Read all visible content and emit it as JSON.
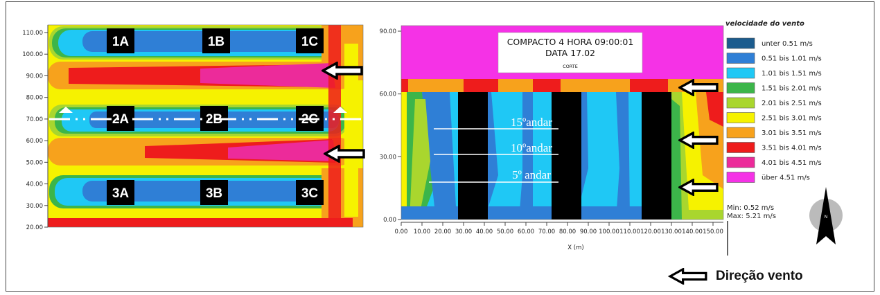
{
  "plan_map": {
    "y_ticks": [
      "110.00",
      "100.00",
      "90.00",
      "80.00",
      "70.00",
      "60.00",
      "50.00",
      "40.00",
      "30.00",
      "20.00"
    ],
    "buildings": [
      "1A",
      "1B",
      "1C",
      "2A",
      "2B",
      "2C",
      "3A",
      "3B",
      "3C"
    ]
  },
  "section_map": {
    "title_line1": "COMPACTO 4   HORA 09:00:01",
    "title_line2": "DATA 17.02",
    "title_line3": "CORTE",
    "y_ticks": [
      "90.00",
      "60.00",
      "30.00",
      "0.00"
    ],
    "x_ticks": [
      "0.00",
      "10.00",
      "20.00",
      "30.00",
      "40.00",
      "50.00",
      "60.00",
      "70.00",
      "80.00",
      "90.00",
      "100.00",
      "110.00",
      "120.00",
      "130.00",
      "140.00",
      "150.00"
    ],
    "xlabel": "X (m)",
    "floors": [
      "15ºandar",
      "10ºandar",
      "5º andar"
    ]
  },
  "legend": {
    "title": "velocidade do vento",
    "items": [
      {
        "label": "unter 0.51 m/s",
        "color": "#1c5c8e"
      },
      {
        "label": "0.51 bis 1.01 m/s",
        "color": "#2f7fd6"
      },
      {
        "label": "1.01 bis 1.51 m/s",
        "color": "#1fc8f5"
      },
      {
        "label": "1.51 bis 2.01 m/s",
        "color": "#3cb54a"
      },
      {
        "label": "2.01 bis 2.51 m/s",
        "color": "#a9d62e"
      },
      {
        "label": "2.51 bis 3.01 m/s",
        "color": "#f6f200"
      },
      {
        "label": "3.01 bis 3.51 m/s",
        "color": "#f7a21c"
      },
      {
        "label": "3.51 bis 4.01 m/s",
        "color": "#ee1c1c"
      },
      {
        "label": "4.01 bis 4.51 m/s",
        "color": "#ec2b9a"
      },
      {
        "label": "über 4.51 m/s",
        "color": "#f532e6"
      }
    ],
    "min": "Min: 0.52 m/s",
    "max": "Max: 5.21 m/s",
    "north": "N"
  },
  "wind_direction": "Direção vento",
  "chart_data": [
    {
      "type": "heatmap",
      "view": "plan",
      "ylim": [
        20,
        110
      ],
      "y_ticks": [
        110,
        100,
        90,
        80,
        70,
        60,
        50,
        40,
        30,
        20
      ],
      "buildings": [
        "1A",
        "1B",
        "1C",
        "2A",
        "2B",
        "2C",
        "3A",
        "3B",
        "3C"
      ],
      "section_cut_y": 70
    },
    {
      "type": "heatmap",
      "view": "section",
      "title": "COMPACTO 4   HORA 09:00:01 DATA 17.02 CORTE",
      "xlabel": "X (m)",
      "xlim": [
        0,
        155
      ],
      "ylim": [
        0,
        90
      ],
      "x_ticks": [
        0,
        10,
        20,
        30,
        40,
        50,
        60,
        70,
        80,
        90,
        100,
        110,
        120,
        130,
        140,
        150
      ],
      "y_ticks": [
        0,
        30,
        60,
        90
      ],
      "building_height": 60,
      "buildings_x": [
        [
          27,
          40
        ],
        [
          71,
          84
        ],
        [
          114,
          127
        ]
      ],
      "floor_lines": [
        {
          "label": "15ºandar",
          "y": 45
        },
        {
          "label": "10ºandar",
          "y": 32
        },
        {
          "label": "5º andar",
          "y": 18
        }
      ]
    }
  ]
}
